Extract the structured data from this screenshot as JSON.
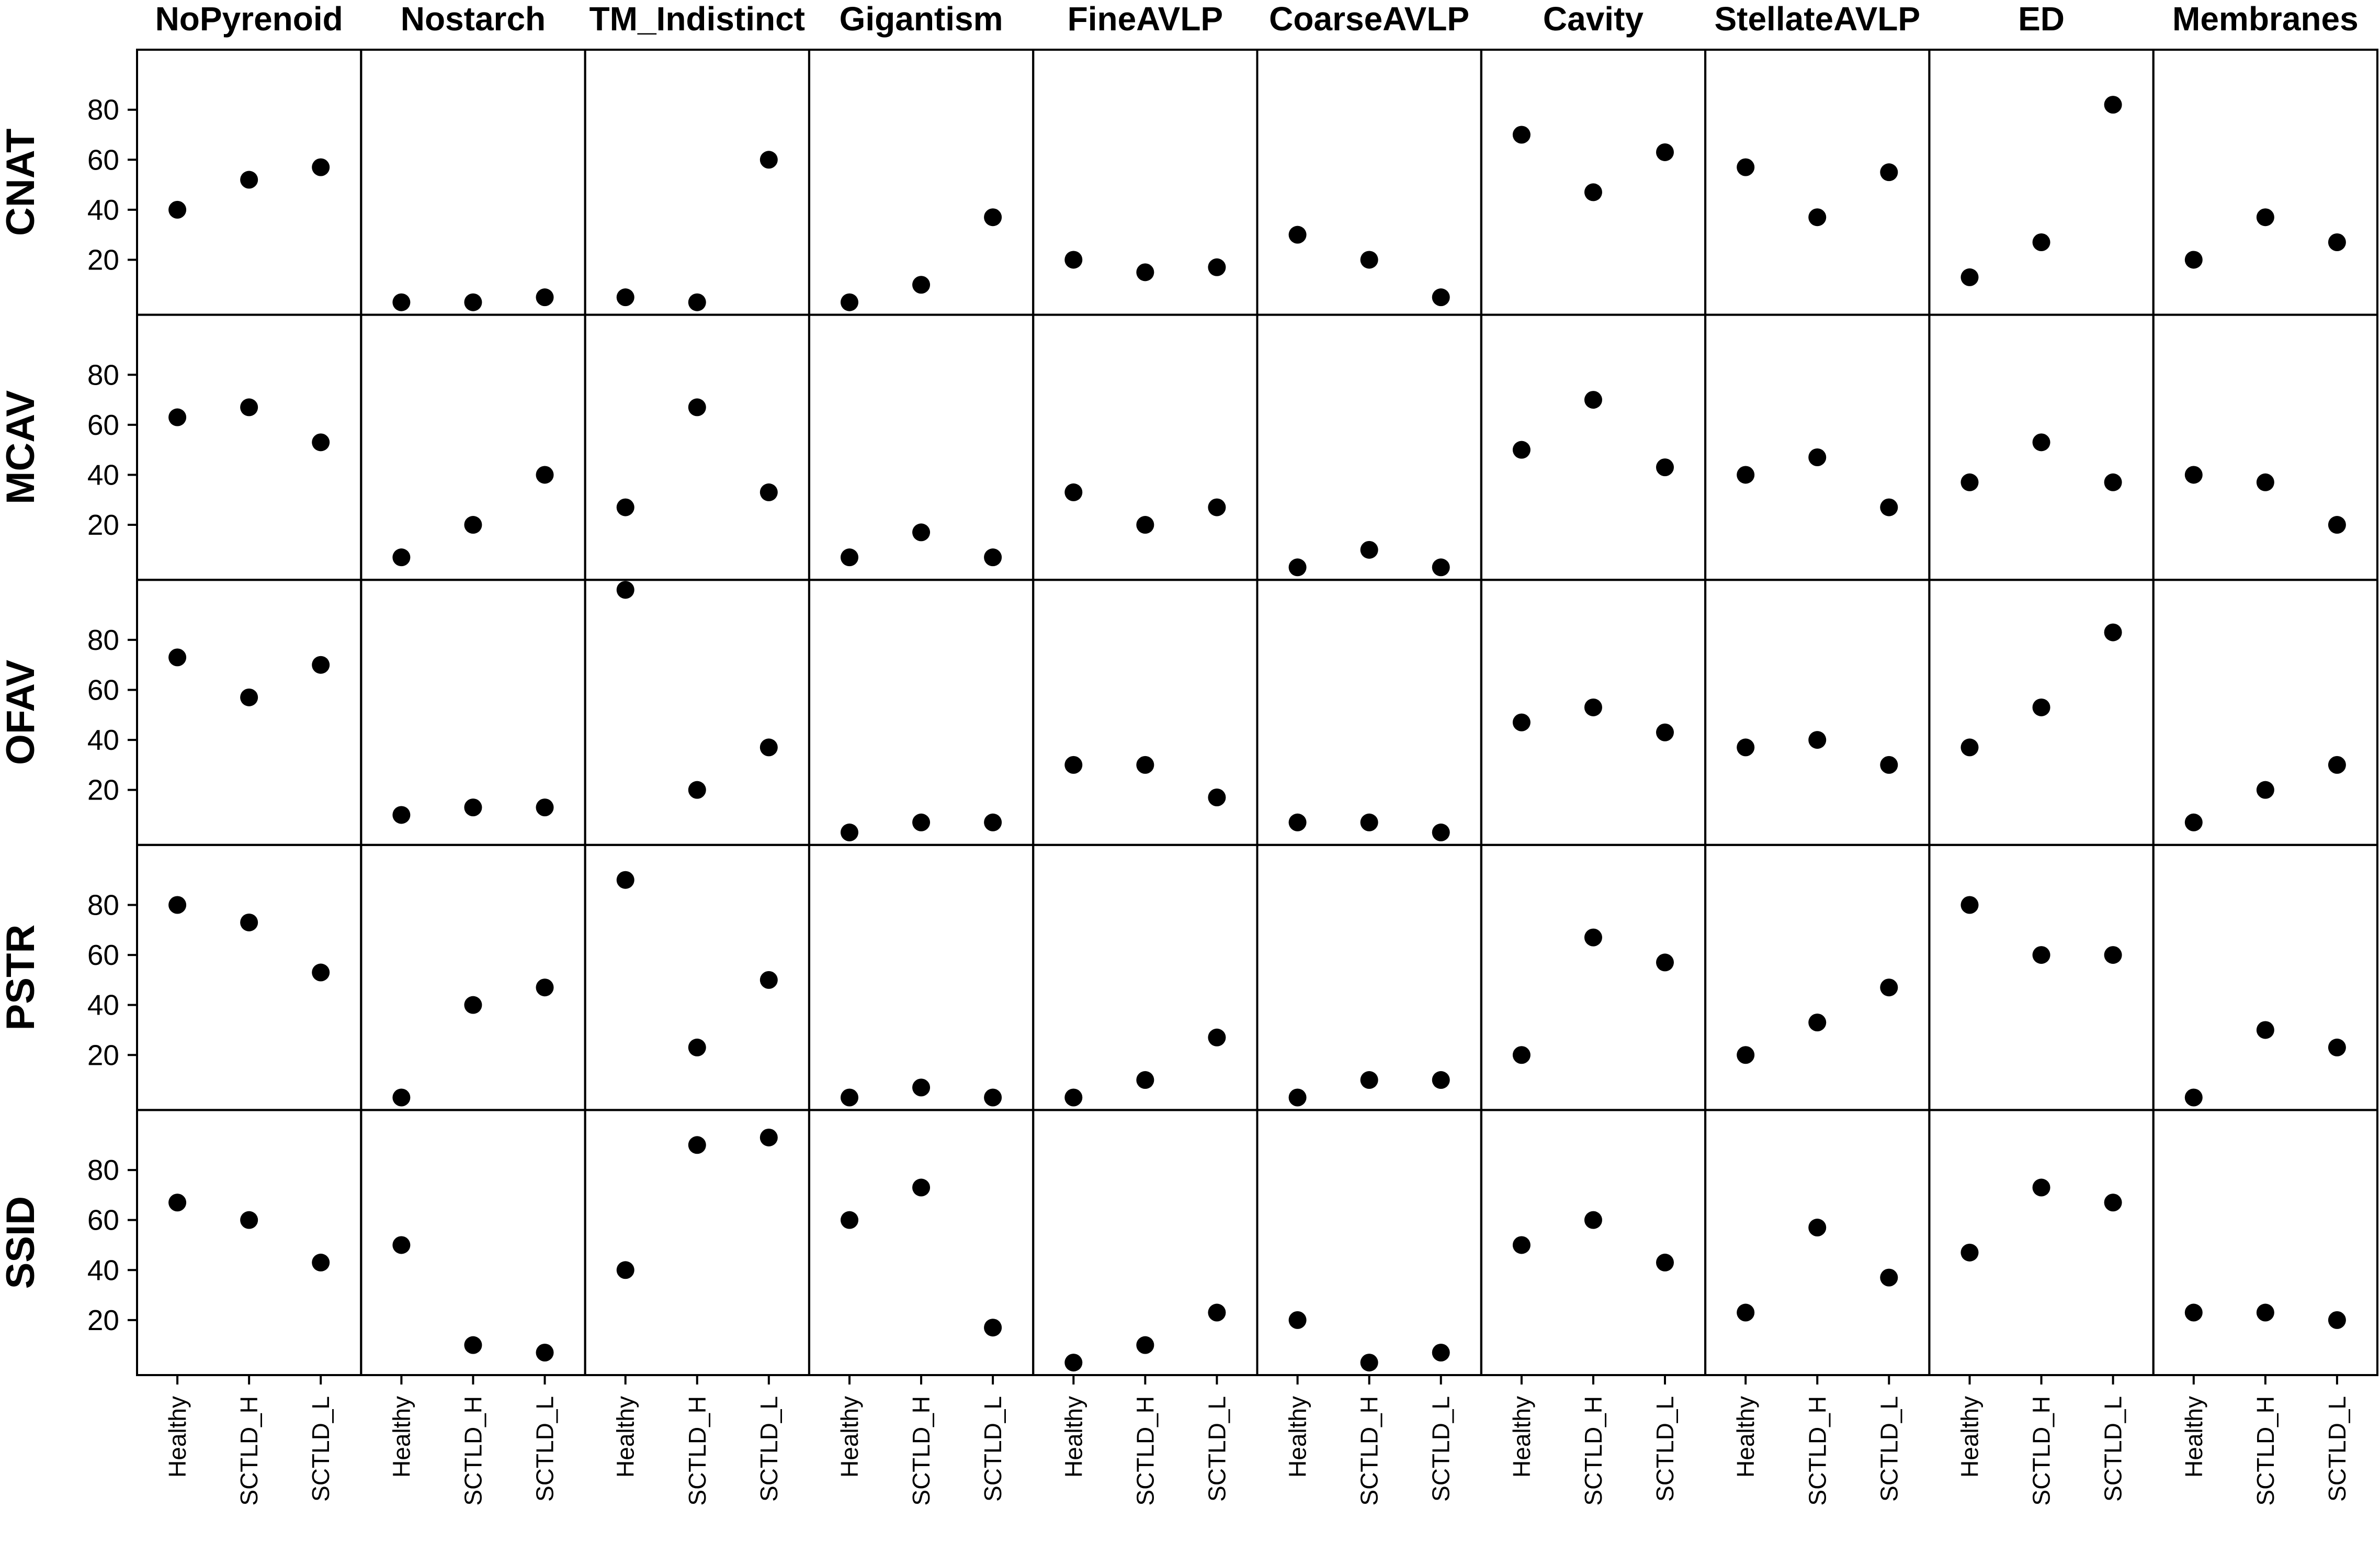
{
  "chart_data": {
    "type": "scatter",
    "columns": [
      "NoPyrenoid",
      "Nostarch",
      "TM_Indistinct",
      "Gigantism",
      "FineAVLP",
      "CoarseAVLP",
      "Cavity",
      "StellateAVLP",
      "ED",
      "Membranes"
    ],
    "rows": [
      "CNAT",
      "MCAV",
      "OFAV",
      "PSTR",
      "SSID"
    ],
    "x_categories": [
      "Healthy",
      "SCTLD_H",
      "SCTLD_L"
    ],
    "y_ticks": [
      20,
      40,
      60,
      80
    ],
    "ylim": [
      -2,
      104
    ],
    "grid": false,
    "legend": "none",
    "point_color": "#000000",
    "values": {
      "CNAT": {
        "NoPyrenoid": [
          40,
          52,
          57
        ],
        "Nostarch": [
          3,
          3,
          5
        ],
        "TM_Indistinct": [
          5,
          3,
          60
        ],
        "Gigantism": [
          3,
          10,
          37
        ],
        "FineAVLP": [
          20,
          15,
          17
        ],
        "CoarseAVLP": [
          30,
          20,
          5
        ],
        "Cavity": [
          70,
          47,
          63
        ],
        "StellateAVLP": [
          57,
          37,
          55
        ],
        "ED": [
          13,
          27,
          82
        ],
        "Membranes": [
          20,
          37,
          27
        ]
      },
      "MCAV": {
        "NoPyrenoid": [
          63,
          67,
          53
        ],
        "Nostarch": [
          7,
          20,
          40
        ],
        "TM_Indistinct": [
          27,
          67,
          33
        ],
        "Gigantism": [
          7,
          17,
          7
        ],
        "FineAVLP": [
          33,
          20,
          27
        ],
        "CoarseAVLP": [
          3,
          10,
          3
        ],
        "Cavity": [
          50,
          70,
          43
        ],
        "StellateAVLP": [
          40,
          47,
          27
        ],
        "ED": [
          37,
          53,
          37
        ],
        "Membranes": [
          40,
          37,
          20
        ]
      },
      "OFAV": {
        "NoPyrenoid": [
          73,
          57,
          70
        ],
        "Nostarch": [
          10,
          13,
          13
        ],
        "TM_Indistinct": [
          100,
          20,
          37
        ],
        "Gigantism": [
          3,
          7,
          7
        ],
        "FineAVLP": [
          30,
          30,
          17
        ],
        "CoarseAVLP": [
          7,
          7,
          3
        ],
        "Cavity": [
          47,
          53,
          43
        ],
        "StellateAVLP": [
          37,
          40,
          30
        ],
        "ED": [
          37,
          53,
          83
        ],
        "Membranes": [
          7,
          20,
          30
        ]
      },
      "PSTR": {
        "NoPyrenoid": [
          80,
          73,
          53
        ],
        "Nostarch": [
          3,
          40,
          47
        ],
        "TM_Indistinct": [
          90,
          23,
          50
        ],
        "Gigantism": [
          3,
          7,
          3
        ],
        "FineAVLP": [
          3,
          10,
          27
        ],
        "CoarseAVLP": [
          3,
          10,
          10
        ],
        "Cavity": [
          20,
          67,
          57
        ],
        "StellateAVLP": [
          20,
          33,
          47
        ],
        "ED": [
          80,
          60,
          60
        ],
        "Membranes": [
          3,
          30,
          23
        ]
      },
      "SSID": {
        "NoPyrenoid": [
          67,
          60,
          43
        ],
        "Nostarch": [
          50,
          10,
          7
        ],
        "TM_Indistinct": [
          40,
          90,
          93
        ],
        "Gigantism": [
          60,
          73,
          17
        ],
        "FineAVLP": [
          3,
          10,
          23
        ],
        "CoarseAVLP": [
          20,
          3,
          7
        ],
        "Cavity": [
          50,
          60,
          43
        ],
        "StellateAVLP": [
          23,
          57,
          37
        ],
        "ED": [
          47,
          73,
          67
        ],
        "Membranes": [
          23,
          23,
          20
        ]
      }
    }
  }
}
